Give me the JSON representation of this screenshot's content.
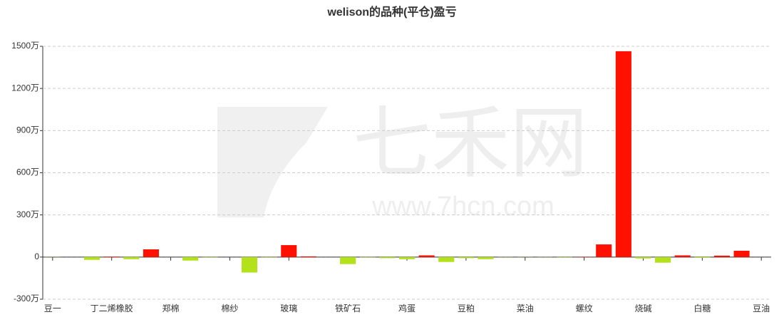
{
  "chart_data": {
    "type": "bar",
    "title": "welison的品种(平仓)盈亏",
    "watermark": [
      "七禾网",
      "www.7hcn.com"
    ],
    "categories": [
      "豆一",
      null,
      null,
      "丁二烯橡胶",
      null,
      null,
      "郑棉",
      null,
      null,
      "棉纱",
      null,
      null,
      "玻璃",
      null,
      null,
      "铁矿石",
      null,
      null,
      "鸡蛋",
      null,
      null,
      "豆粕",
      null,
      null,
      "菜油",
      null,
      null,
      "螺纹",
      null,
      null,
      "烧碱",
      null,
      null,
      "白糖",
      null,
      null,
      "豆油"
    ],
    "values": [
      -1,
      0,
      -20,
      3,
      -15,
      55,
      0,
      -25,
      -2,
      0,
      -110,
      -2,
      85,
      5,
      0,
      -50,
      -2,
      -8,
      -15,
      12,
      -35,
      -8,
      -15,
      -1,
      -1,
      -1,
      -2,
      2,
      90,
      1465,
      -10,
      -40,
      12,
      -5,
      10,
      45,
      0
    ],
    "positive_color": "#ff1100",
    "negative_color": "#b3e21b",
    "ylim": [
      -300,
      1500
    ],
    "yticks": [
      {
        "value": -300,
        "label": "-300万"
      },
      0,
      {
        "value": 300,
        "label": "300万"
      },
      {
        "value": 600,
        "label": "600万"
      },
      {
        "value": 900,
        "label": "900万"
      },
      {
        "value": 1200,
        "label": "1200万"
      },
      {
        "value": 1500,
        "label": "1500万"
      }
    ],
    "grid": true
  }
}
